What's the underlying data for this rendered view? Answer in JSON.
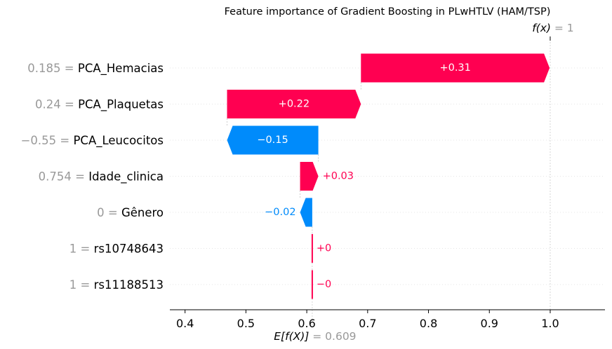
{
  "chart_data": {
    "type": "waterfall",
    "title": "Feature importance of Gradient Boosting in PLwHTLV (HAM/TSP)",
    "base_value": 0.609,
    "base_label": {
      "expr": "E[f(X)]",
      "eq": " = ",
      "value": "0.609"
    },
    "output_value": 1,
    "output_label": {
      "expr": "f(x)",
      "eq": " = ",
      "value": "1"
    },
    "xlim": [
      0.375,
      1.09
    ],
    "x_ticks": [
      0.4,
      0.5,
      0.6,
      0.7,
      0.8,
      0.9,
      1.0
    ],
    "x_tick_labels": [
      "0.4",
      "0.5",
      "0.6",
      "0.7",
      "0.8",
      "0.9",
      "1.0"
    ],
    "grid": "dotted horizontal rows",
    "colors": {
      "positive": "#ff0051",
      "negative": "#008bfb",
      "muted": "#999999"
    },
    "features": [
      {
        "value": "0.185",
        "name": "PCA_Hemacias",
        "contribution": 0.31,
        "label": "+0.31"
      },
      {
        "value": "0.24",
        "name": "PCA_Plaquetas",
        "contribution": 0.22,
        "label": "+0.22"
      },
      {
        "value": "−0.55",
        "name": "PCA_Leucocitos",
        "contribution": -0.15,
        "label": "−0.15"
      },
      {
        "value": "0.754",
        "name": "Idade_clinica",
        "contribution": 0.03,
        "label": "+0.03"
      },
      {
        "value": "0",
        "name": "Gênero",
        "contribution": -0.02,
        "label": "−0.02"
      },
      {
        "value": "1",
        "name": "rs10748643",
        "contribution": 0.0,
        "label": "+0"
      },
      {
        "value": "1",
        "name": "rs11188513",
        "contribution": -0.0,
        "label": "−0"
      }
    ]
  }
}
